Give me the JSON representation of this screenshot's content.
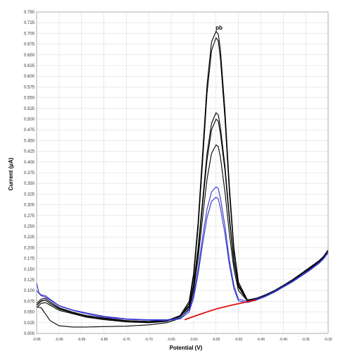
{
  "chart_data": {
    "type": "line",
    "title": "",
    "xlabel": "Potential (V)",
    "ylabel": "Current (µA)",
    "xlim": [
      -0.95,
      -0.3
    ],
    "ylim": [
      0.0,
      0.75
    ],
    "x_reversed": true,
    "grid": true,
    "legend": "none",
    "annotations": [
      {
        "text": "pb",
        "x": -0.55,
        "y": 0.71
      }
    ],
    "x_ticks": [
      {
        "value": -0.95,
        "label": "-0.95"
      },
      {
        "value": -0.9,
        "label": "-0.90"
      },
      {
        "value": -0.85,
        "label": "-0.85"
      },
      {
        "value": -0.8,
        "label": "-0.80"
      },
      {
        "value": -0.75,
        "label": "-0.75"
      },
      {
        "value": -0.7,
        "label": "-0.70"
      },
      {
        "value": -0.65,
        "label": "-0.65"
      },
      {
        "value": -0.6,
        "label": "-0.60"
      },
      {
        "value": -0.55,
        "label": "-0.55"
      },
      {
        "value": -0.5,
        "label": "-0.50"
      },
      {
        "value": -0.45,
        "label": "-0.45"
      },
      {
        "value": -0.4,
        "label": "-0.40"
      },
      {
        "value": -0.35,
        "label": "-0.35"
      },
      {
        "value": -0.3,
        "label": "-0.30"
      }
    ],
    "y_ticks": [
      "0.000",
      "0.025",
      "0.050",
      "0.075",
      "0.100",
      "0.125",
      "0.150",
      "0.175",
      "0.200",
      "0.225",
      "0.250",
      "0.275",
      "0.300",
      "0.325",
      "0.350",
      "0.375",
      "0.400",
      "0.425",
      "0.450",
      "0.475",
      "0.500",
      "0.525",
      "0.550",
      "0.575",
      "0.600",
      "0.625",
      "0.650",
      "0.675",
      "0.700",
      "0.725",
      "0.750"
    ],
    "series": [
      {
        "color": "#000000",
        "x": [
          -0.95,
          -0.94,
          -0.93,
          -0.92,
          -0.9,
          -0.87,
          -0.84,
          -0.8,
          -0.75,
          -0.7,
          -0.66,
          -0.63,
          -0.61,
          -0.6,
          -0.59,
          -0.58,
          -0.57,
          -0.56,
          -0.55,
          -0.545,
          -0.54,
          -0.53,
          -0.52,
          -0.51,
          -0.5,
          -0.48,
          -0.46,
          -0.44,
          -0.42,
          -0.4,
          -0.38,
          -0.36,
          -0.34,
          -0.32,
          -0.31,
          -0.3
        ],
        "y": [
          0.065,
          0.075,
          0.078,
          0.07,
          0.058,
          0.048,
          0.04,
          0.034,
          0.03,
          0.028,
          0.03,
          0.042,
          0.075,
          0.14,
          0.26,
          0.42,
          0.58,
          0.68,
          0.705,
          0.698,
          0.66,
          0.52,
          0.34,
          0.2,
          0.12,
          0.078,
          0.082,
          0.09,
          0.1,
          0.112,
          0.125,
          0.14,
          0.155,
          0.17,
          0.18,
          0.195
        ]
      },
      {
        "color": "#000000",
        "x": [
          -0.95,
          -0.94,
          -0.93,
          -0.92,
          -0.9,
          -0.87,
          -0.84,
          -0.8,
          -0.75,
          -0.7,
          -0.66,
          -0.63,
          -0.61,
          -0.6,
          -0.59,
          -0.58,
          -0.57,
          -0.56,
          -0.55,
          -0.545,
          -0.54,
          -0.53,
          -0.52,
          -0.51,
          -0.5,
          -0.48,
          -0.46,
          -0.44,
          -0.42,
          -0.4,
          -0.38,
          -0.36,
          -0.34,
          -0.32,
          -0.31,
          -0.3
        ],
        "y": [
          0.06,
          0.07,
          0.072,
          0.066,
          0.054,
          0.046,
          0.038,
          0.032,
          0.027,
          0.025,
          0.028,
          0.04,
          0.07,
          0.13,
          0.245,
          0.4,
          0.56,
          0.66,
          0.69,
          0.682,
          0.64,
          0.5,
          0.325,
          0.19,
          0.115,
          0.076,
          0.08,
          0.088,
          0.098,
          0.11,
          0.122,
          0.138,
          0.152,
          0.168,
          0.178,
          0.19
        ]
      },
      {
        "color": "#000000",
        "x": [
          -0.95,
          -0.94,
          -0.93,
          -0.92,
          -0.9,
          -0.87,
          -0.84,
          -0.8,
          -0.75,
          -0.7,
          -0.66,
          -0.63,
          -0.61,
          -0.6,
          -0.59,
          -0.58,
          -0.57,
          -0.56,
          -0.55,
          -0.545,
          -0.54,
          -0.53,
          -0.52,
          -0.51,
          -0.5,
          -0.48,
          -0.46,
          -0.44,
          -0.42,
          -0.4,
          -0.38,
          -0.36,
          -0.34,
          -0.32,
          -0.31,
          -0.3
        ],
        "y": [
          0.07,
          0.08,
          0.082,
          0.074,
          0.06,
          0.05,
          0.042,
          0.036,
          0.03,
          0.028,
          0.03,
          0.04,
          0.065,
          0.115,
          0.2,
          0.31,
          0.42,
          0.49,
          0.515,
          0.51,
          0.48,
          0.39,
          0.27,
          0.17,
          0.11,
          0.078,
          0.082,
          0.09,
          0.1,
          0.112,
          0.124,
          0.138,
          0.154,
          0.17,
          0.18,
          0.195
        ]
      },
      {
        "color": "#000000",
        "x": [
          -0.95,
          -0.94,
          -0.93,
          -0.92,
          -0.9,
          -0.87,
          -0.84,
          -0.8,
          -0.75,
          -0.7,
          -0.66,
          -0.63,
          -0.61,
          -0.6,
          -0.59,
          -0.58,
          -0.57,
          -0.56,
          -0.55,
          -0.545,
          -0.54,
          -0.53,
          -0.52,
          -0.51,
          -0.5,
          -0.48,
          -0.46,
          -0.44,
          -0.42,
          -0.4,
          -0.38,
          -0.36,
          -0.34,
          -0.32,
          -0.31,
          -0.3
        ],
        "y": [
          0.066,
          0.076,
          0.078,
          0.07,
          0.057,
          0.048,
          0.04,
          0.034,
          0.028,
          0.026,
          0.029,
          0.039,
          0.062,
          0.11,
          0.19,
          0.3,
          0.405,
          0.475,
          0.5,
          0.495,
          0.465,
          0.38,
          0.262,
          0.165,
          0.108,
          0.076,
          0.08,
          0.088,
          0.098,
          0.11,
          0.122,
          0.136,
          0.15,
          0.166,
          0.176,
          0.19
        ]
      },
      {
        "color": "#000000",
        "x": [
          -0.95,
          -0.94,
          -0.93,
          -0.92,
          -0.9,
          -0.87,
          -0.84,
          -0.8,
          -0.75,
          -0.7,
          -0.66,
          -0.63,
          -0.61,
          -0.6,
          -0.59,
          -0.58,
          -0.57,
          -0.56,
          -0.55,
          -0.545,
          -0.54,
          -0.53,
          -0.52,
          -0.51,
          -0.5,
          -0.48,
          -0.46,
          -0.44,
          -0.42,
          -0.4,
          -0.38,
          -0.36,
          -0.34,
          -0.32,
          -0.31,
          -0.3
        ],
        "y": [
          0.062,
          0.06,
          0.045,
          0.03,
          0.018,
          0.015,
          0.015,
          0.016,
          0.017,
          0.02,
          0.025,
          0.035,
          0.058,
          0.1,
          0.175,
          0.27,
          0.36,
          0.42,
          0.44,
          0.436,
          0.41,
          0.33,
          0.23,
          0.15,
          0.1,
          0.076,
          0.08,
          0.088,
          0.098,
          0.108,
          0.12,
          0.134,
          0.148,
          0.164,
          0.176,
          0.192
        ]
      },
      {
        "color": "#3333cc",
        "x": [
          -0.95,
          -0.945,
          -0.94,
          -0.93,
          -0.92,
          -0.9,
          -0.87,
          -0.84,
          -0.8,
          -0.75,
          -0.7,
          -0.66,
          -0.63,
          -0.61,
          -0.6,
          -0.59,
          -0.58,
          -0.57,
          -0.56,
          -0.55,
          -0.545,
          -0.54,
          -0.53,
          -0.52,
          -0.51,
          -0.5,
          -0.48,
          -0.46,
          -0.44,
          -0.42,
          -0.4,
          -0.38,
          -0.36,
          -0.34,
          -0.32,
          -0.31,
          -0.3
        ],
        "y": [
          0.118,
          0.095,
          0.09,
          0.088,
          0.08,
          0.065,
          0.055,
          0.048,
          0.04,
          0.034,
          0.032,
          0.032,
          0.036,
          0.055,
          0.09,
          0.15,
          0.225,
          0.29,
          0.33,
          0.342,
          0.338,
          0.315,
          0.25,
          0.17,
          0.112,
          0.08,
          0.075,
          0.08,
          0.088,
          0.098,
          0.11,
          0.122,
          0.136,
          0.15,
          0.166,
          0.176,
          0.19
        ]
      },
      {
        "color": "#3333cc",
        "x": [
          -0.95,
          -0.94,
          -0.93,
          -0.92,
          -0.9,
          -0.87,
          -0.84,
          -0.8,
          -0.75,
          -0.7,
          -0.66,
          -0.63,
          -0.61,
          -0.6,
          -0.59,
          -0.58,
          -0.57,
          -0.56,
          -0.55,
          -0.545,
          -0.54,
          -0.53,
          -0.52,
          -0.51,
          -0.5,
          -0.48,
          -0.46,
          -0.44,
          -0.42,
          -0.4,
          -0.38,
          -0.36,
          -0.34,
          -0.32,
          -0.31,
          -0.3
        ],
        "y": [
          0.1,
          0.088,
          0.085,
          0.078,
          0.064,
          0.054,
          0.046,
          0.038,
          0.033,
          0.031,
          0.03,
          0.034,
          0.05,
          0.082,
          0.138,
          0.208,
          0.27,
          0.308,
          0.318,
          0.314,
          0.292,
          0.232,
          0.158,
          0.104,
          0.076,
          0.072,
          0.078,
          0.086,
          0.096,
          0.108,
          0.12,
          0.134,
          0.148,
          0.164,
          0.174,
          0.188
        ]
      },
      {
        "color": "#dd1111",
        "x": [
          -0.62,
          -0.585,
          -0.55,
          -0.515,
          -0.48,
          -0.46
        ],
        "y": [
          0.032,
          0.045,
          0.057,
          0.066,
          0.074,
          0.078
        ]
      }
    ]
  }
}
